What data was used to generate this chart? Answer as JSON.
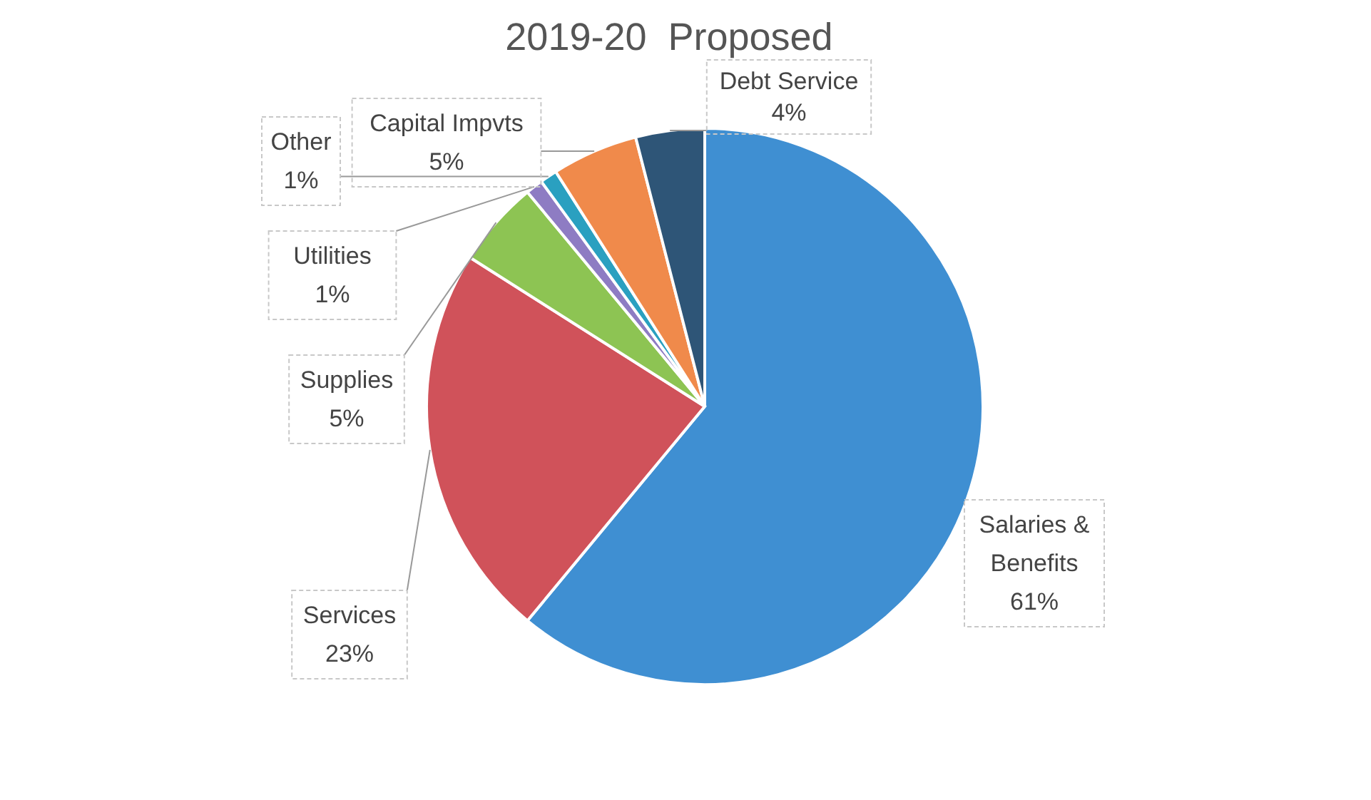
{
  "chart_data": {
    "type": "pie",
    "title": "2019-20  Proposed",
    "categories": [
      "Salaries & Benefits",
      "Services",
      "Supplies",
      "Utilities",
      "Other",
      "Capital Impvts",
      "Debt Service"
    ],
    "values": [
      61,
      23,
      5,
      1,
      1,
      5,
      4
    ],
    "value_labels": [
      "61%",
      "23%",
      "5%",
      "1%",
      "1%",
      "5%",
      "4%"
    ],
    "colors": [
      "#3f8fd2",
      "#d0525a",
      "#8dc453",
      "#8e7cc3",
      "#2aa0c0",
      "#f08a4b",
      "#2e5577"
    ],
    "legend": false
  }
}
